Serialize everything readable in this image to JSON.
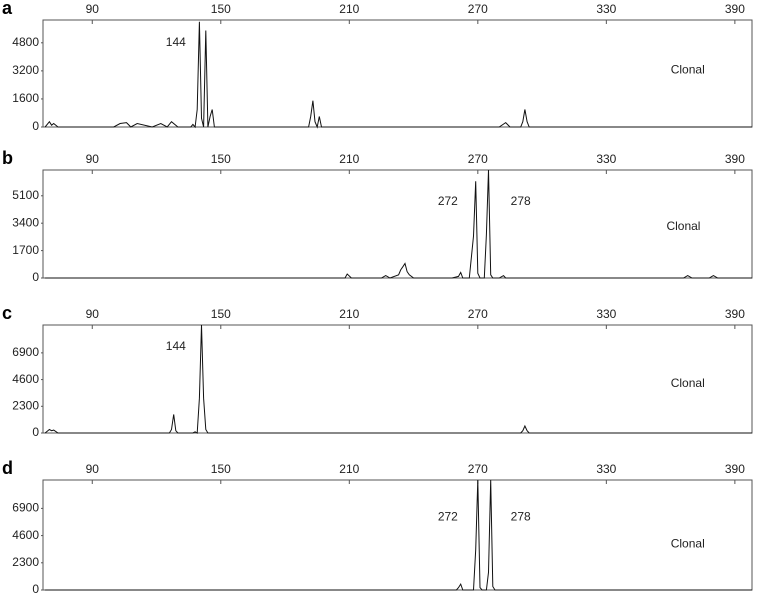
{
  "chart_data": [
    {
      "type": "line",
      "panel_label": "a",
      "color": "#111111",
      "xlim": [
        67,
        398
      ],
      "ylim": [
        0,
        6100
      ],
      "xticks": [
        90,
        150,
        210,
        270,
        330,
        390
      ],
      "yticks": [
        0,
        1600,
        3200,
        4800
      ],
      "x": [
        68,
        70,
        71,
        72,
        74,
        100,
        103,
        106,
        108,
        111,
        118,
        122,
        125,
        127,
        130,
        136,
        137,
        138,
        139,
        140,
        141,
        142,
        143,
        144,
        145,
        146,
        147,
        148,
        160,
        170,
        190,
        191,
        192,
        193,
        194,
        195,
        196,
        197,
        199,
        230,
        280,
        283,
        285,
        290,
        291,
        292,
        293,
        294,
        398
      ],
      "values": [
        0,
        300,
        100,
        200,
        0,
        0,
        200,
        250,
        0,
        200,
        0,
        200,
        0,
        300,
        0,
        0,
        150,
        0,
        1000,
        6000,
        500,
        0,
        5500,
        0,
        600,
        1000,
        0,
        0,
        0,
        0,
        0,
        0,
        600,
        1500,
        300,
        0,
        600,
        0,
        0,
        0,
        0,
        250,
        0,
        0,
        300,
        1000,
        300,
        0,
        0
      ],
      "annotations": [
        {
          "text": "144",
          "x": 129,
          "y": 4800
        },
        {
          "text": "Clonal",
          "x": 368,
          "y": 3230
        }
      ]
    },
    {
      "type": "line",
      "panel_label": "b",
      "color": "#111111",
      "xlim": [
        67,
        398
      ],
      "ylim": [
        0,
        6700
      ],
      "xticks": [
        90,
        150,
        210,
        270,
        330,
        390
      ],
      "yticks": [
        0,
        1700,
        3400,
        5100
      ],
      "x": [
        68,
        208,
        209,
        211,
        225,
        227,
        229,
        233,
        234,
        235,
        236,
        237,
        238,
        240,
        258,
        261,
        262,
        263,
        266,
        268,
        269,
        270,
        271,
        272,
        273,
        274,
        275,
        276,
        277,
        278,
        280,
        282,
        283,
        285,
        366,
        368,
        370,
        378,
        380,
        382,
        398
      ],
      "values": [
        0,
        0,
        250,
        0,
        0,
        150,
        0,
        200,
        500,
        700,
        900,
        400,
        200,
        0,
        0,
        100,
        350,
        0,
        0,
        2600,
        6000,
        300,
        0,
        0,
        0,
        2700,
        6700,
        200,
        0,
        0,
        0,
        150,
        0,
        0,
        0,
        150,
        0,
        0,
        150,
        0,
        0
      ],
      "annotations": [
        {
          "text": "272",
          "x": 256,
          "y": 4720
        },
        {
          "text": "278",
          "x": 290,
          "y": 4720
        },
        {
          "text": "Clonal",
          "x": 366,
          "y": 3170
        }
      ]
    },
    {
      "type": "line",
      "panel_label": "c",
      "color": "#111111",
      "xlim": [
        67,
        398
      ],
      "ylim": [
        0,
        9300
      ],
      "xticks": [
        90,
        150,
        210,
        270,
        330,
        390
      ],
      "yticks": [
        0,
        2300,
        4600,
        6900
      ],
      "x": [
        68,
        70,
        71,
        72,
        74,
        126,
        127,
        128,
        129,
        130,
        137,
        138,
        139,
        140,
        141,
        142,
        143,
        144,
        290,
        291,
        292,
        293,
        294,
        398
      ],
      "values": [
        0,
        300,
        200,
        250,
        0,
        0,
        300,
        1600,
        200,
        0,
        0,
        100,
        0,
        3000,
        9300,
        3000,
        300,
        0,
        0,
        200,
        600,
        200,
        0,
        0
      ],
      "annotations": [
        {
          "text": "144",
          "x": 129,
          "y": 7420
        },
        {
          "text": "Clonal",
          "x": 368,
          "y": 4230
        }
      ]
    },
    {
      "type": "line",
      "panel_label": "d",
      "color": "#111111",
      "xlim": [
        67,
        398
      ],
      "ylim": [
        0,
        9300
      ],
      "xticks": [
        90,
        150,
        210,
        270,
        330,
        390
      ],
      "yticks": [
        0,
        2300,
        4600,
        6900
      ],
      "x": [
        68,
        260,
        261,
        262,
        263,
        266,
        268,
        269,
        270,
        271,
        272,
        274,
        275,
        276,
        277,
        278,
        398
      ],
      "values": [
        0,
        0,
        200,
        500,
        0,
        0,
        0,
        3400,
        9300,
        200,
        0,
        0,
        1500,
        9300,
        300,
        0,
        0
      ],
      "annotations": [
        {
          "text": "272",
          "x": 256,
          "y": 6140
        },
        {
          "text": "278",
          "x": 290,
          "y": 6140
        },
        {
          "text": "Clonal",
          "x": 368,
          "y": 3870
        }
      ]
    }
  ]
}
